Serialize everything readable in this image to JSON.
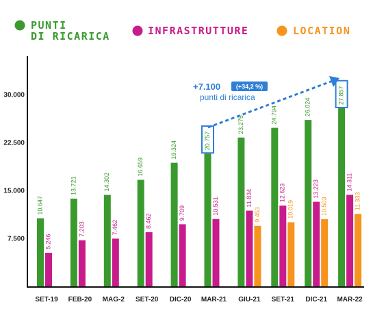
{
  "chart_data": {
    "type": "bar",
    "categories": [
      "SET-19",
      "FEB-20",
      "MAG-2",
      "SET-20",
      "DIC-20",
      "MAR-21",
      "GIU-21",
      "SET-21",
      "DIC-21",
      "MAR-22"
    ],
    "series": [
      {
        "name": "PUNTI DI RICARICA",
        "color": "#3a9a2e",
        "values": [
          10647,
          13721,
          14302,
          16659,
          19324,
          20757,
          23275,
          24794,
          26024,
          27857
        ],
        "labels": [
          "10.647",
          "13.721",
          "14.302",
          "16.659",
          "19.324",
          "20.757",
          "23.275",
          "24.794",
          "26.024",
          "27.857"
        ]
      },
      {
        "name": "INFRASTRUTTURE",
        "color": "#c81c8c",
        "values": [
          5246,
          7203,
          7462,
          8462,
          9709,
          10531,
          11834,
          12623,
          13223,
          14311
        ],
        "labels": [
          "5.246",
          "7.203",
          "7.462",
          "8.462",
          "9.709",
          "10.531",
          "11.834",
          "12.623",
          "13.223",
          "14.311"
        ]
      },
      {
        "name": "LOCATION",
        "color": "#f7941d",
        "values": [
          null,
          null,
          null,
          null,
          null,
          null,
          9453,
          10019,
          10503,
          11333
        ],
        "labels": [
          null,
          null,
          null,
          null,
          null,
          null,
          "9.453",
          "10.019",
          "10.503",
          "11.333"
        ]
      }
    ],
    "yticks": [
      7500,
      15000,
      22500,
      30000
    ],
    "ytick_labels": [
      "7.500",
      "15.000",
      "22.500",
      "30.000"
    ],
    "ylim": [
      0,
      36000
    ],
    "legend": {
      "position": "top"
    },
    "legend_lines": {
      "punti": [
        "PUNTI",
        "DI RICARICA"
      ],
      "infra": "INFRASTRUTTURE",
      "location": "LOCATION"
    },
    "highlighted": [
      "MAR-21",
      "MAR-22"
    ],
    "annotation": {
      "main": "+7.100",
      "badge": "(+34,2 %)",
      "sub": "punti di ricarica",
      "color": "#2f7fd6"
    },
    "grid": false
  }
}
